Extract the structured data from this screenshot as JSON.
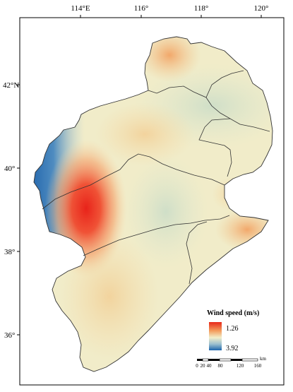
{
  "map": {
    "lon_ticks": [
      "114°E",
      "116°",
      "118°",
      "120°"
    ],
    "lat_ticks": [
      "42°N",
      "40°",
      "38°",
      "36°"
    ]
  },
  "legend": {
    "title": "Wind speed (m/s)",
    "max_label": "1.26",
    "min_label": "3.92",
    "colors": [
      "#e8281b",
      "#f39a5a",
      "#f2eeca",
      "#9cc0cf",
      "#1c65ad"
    ]
  },
  "scalebar": {
    "labels": [
      "0",
      "20",
      "40",
      "80",
      "120",
      "160"
    ],
    "unit": "km"
  }
}
